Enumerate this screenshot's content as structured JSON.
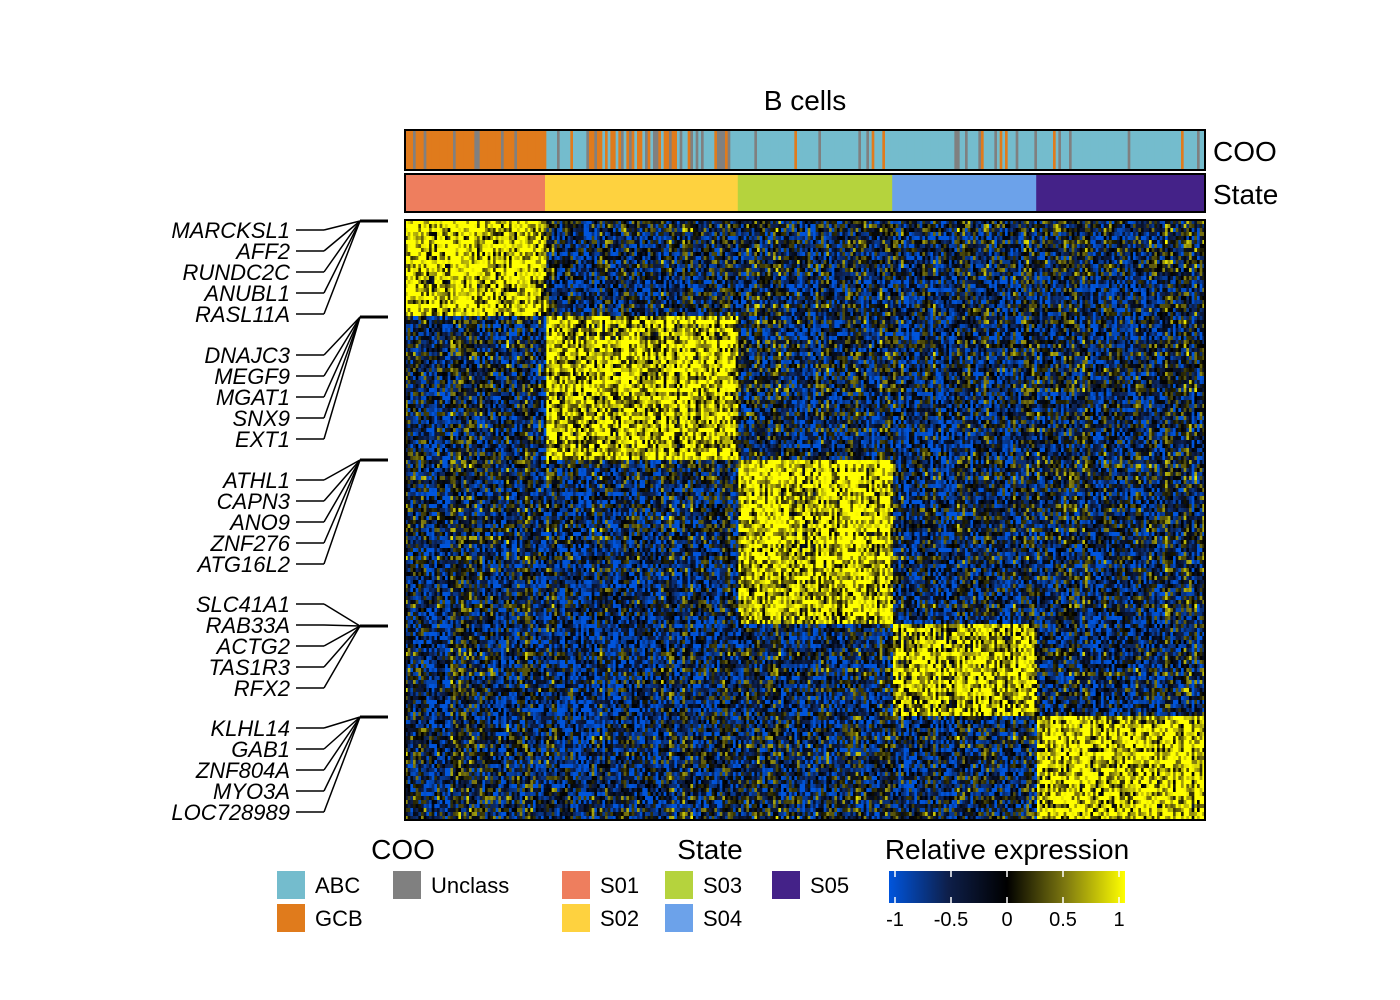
{
  "chart_data": {
    "type": "heatmap",
    "title": "B cells",
    "annotation_tracks": [
      "COO",
      "State"
    ],
    "states": [
      {
        "name": "S01",
        "color": "#EE7E5E",
        "fraction": 0.175
      },
      {
        "name": "S02",
        "color": "#FED23F",
        "fraction": 0.241
      },
      {
        "name": "S03",
        "color": "#B5D33D",
        "fraction": 0.193
      },
      {
        "name": "S04",
        "color": "#6CA2EA",
        "fraction": 0.18
      },
      {
        "name": "S05",
        "color": "#442288",
        "fraction": 0.211
      }
    ],
    "coo_classes": [
      {
        "name": "ABC",
        "color": "#74BCCD"
      },
      {
        "name": "GCB",
        "color": "#E07B1C"
      },
      {
        "name": "Unclass",
        "color": "#808080"
      }
    ],
    "gene_modules": [
      {
        "state": "S01",
        "row_fraction": 0.155,
        "genes": [
          "MARCKSL1",
          "AFF2",
          "RUNDC2C",
          "ANUBL1",
          "RASL11A"
        ]
      },
      {
        "state": "S02",
        "row_fraction": 0.242,
        "genes": [
          "DNAJC3",
          "MEGF9",
          "MGAT1",
          "SNX9",
          "EXT1"
        ]
      },
      {
        "state": "S03",
        "row_fraction": 0.275,
        "genes": [
          "ATHL1",
          "CAPN3",
          "ANO9",
          "ZNF276",
          "ATG16L2"
        ]
      },
      {
        "state": "S04",
        "row_fraction": 0.15,
        "genes": [
          "SLC41A1",
          "RAB33A",
          "ACTG2",
          "TAS1R3",
          "RFX2"
        ]
      },
      {
        "state": "S05",
        "row_fraction": 0.178,
        "genes": [
          "KLHL14",
          "GAB1",
          "ZNF804A",
          "MYO3A",
          "LOC728989"
        ]
      }
    ],
    "colorbar": {
      "title": "Relative expression",
      "range": [
        -1,
        1
      ],
      "ticks": [
        "-1",
        "-0.5",
        "0",
        "0.5",
        "1"
      ],
      "colors": [
        "#0055DD",
        "#0E1F4A",
        "#000000",
        "#7F7A10",
        "#FFFF00"
      ]
    }
  },
  "legend": {
    "coo_title": "COO",
    "state_title": "State",
    "expression_title": "Relative expression"
  }
}
